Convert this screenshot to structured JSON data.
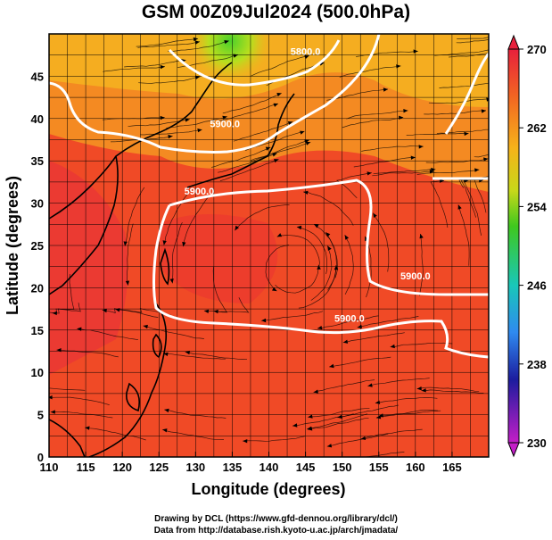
{
  "title": "GSM 00Z09Jul2024 (500.0hPa)",
  "map": {
    "xlabel": "Longitude (degrees)",
    "ylabel": "Latitude  (degrees)",
    "xlim": [
      110,
      170
    ],
    "ylim": [
      0,
      50
    ],
    "xticks": [
      "110",
      "115",
      "120",
      "125",
      "130",
      "135",
      "140",
      "145",
      "150",
      "155",
      "160",
      "165"
    ],
    "yticks": [
      "0",
      "5",
      "10",
      "15",
      "20",
      "25",
      "30",
      "35",
      "40",
      "45"
    ],
    "gridlines": true,
    "field": "temperature (K), shaded",
    "wind_field": "streamlines",
    "contour_labels": [
      {
        "text": "5900.0",
        "lon": 151,
        "lat": 16
      },
      {
        "text": "5900.0",
        "lon": 130.5,
        "lat": 31
      },
      {
        "text": "5900.0",
        "lon": 134,
        "lat": 39
      },
      {
        "text": "5900.0",
        "lon": 160,
        "lat": 21
      },
      {
        "text": "5800.0",
        "lon": 145,
        "lat": 47.5
      }
    ]
  },
  "colorbar": {
    "ticks": [
      "270",
      "262",
      "254",
      "246",
      "238",
      "230"
    ],
    "colors": [
      "#e8203c",
      "#f47a1f",
      "#f6c21a",
      "#3fc81e",
      "#19c7b9",
      "#2f6ef0",
      "#1c1c9e",
      "#c41ec8"
    ]
  },
  "footer": {
    "line1": "Drawing by DCL (https://www.gfd-dennou.org/library/dcl/)",
    "line2": "Data from http://database.rish.kyoto-u.ac.jp/arch/jmadata/"
  }
}
